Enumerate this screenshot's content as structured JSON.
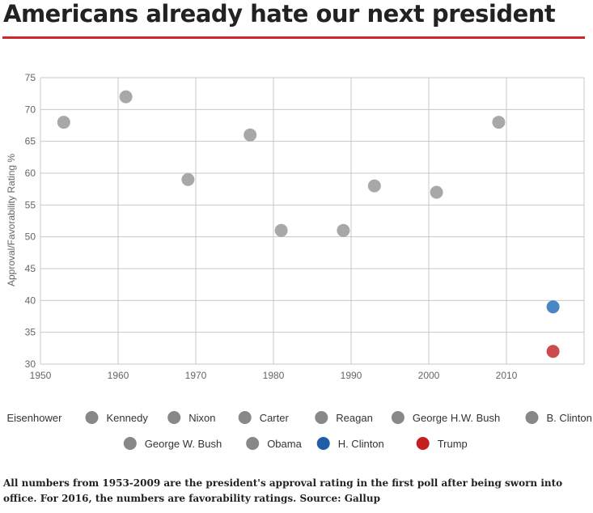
{
  "title": "Americans already hate our next president",
  "footnote": "All numbers from 1953-2009 are the president's approval rating in the first poll after being sworn into office. For 2016, the numbers are favorability ratings. Source: Gallup",
  "colors": {
    "accent_rule": "#d0262c",
    "past_point": "#a8a8a8",
    "legend_past": "#888888",
    "h_clinton": "#4a86c5",
    "h_clinton_legend": "#1f5fa8",
    "trump": "#cc4b4b",
    "trump_legend": "#c41e1e"
  },
  "chart_data": {
    "type": "scatter",
    "title": "Americans already hate our next president",
    "xlabel": "",
    "ylabel": "Approval/Favorability Rating %",
    "xlim": [
      1950,
      2020
    ],
    "ylim": [
      30,
      75
    ],
    "x_ticks": [
      1950,
      1960,
      1970,
      1980,
      1990,
      2000,
      2010
    ],
    "y_ticks": [
      30,
      35,
      40,
      45,
      50,
      55,
      60,
      65,
      70,
      75
    ],
    "grid": true,
    "legend_position": "bottom",
    "series": [
      {
        "name": "Eisenhower",
        "x": 1953,
        "y": 68,
        "color": "#a8a8a8",
        "legend_color": "#888888"
      },
      {
        "name": "Kennedy",
        "x": 1961,
        "y": 72,
        "color": "#a8a8a8",
        "legend_color": "#888888"
      },
      {
        "name": "Nixon",
        "x": 1969,
        "y": 59,
        "color": "#a8a8a8",
        "legend_color": "#888888"
      },
      {
        "name": "Carter",
        "x": 1977,
        "y": 66,
        "color": "#a8a8a8",
        "legend_color": "#888888"
      },
      {
        "name": "Reagan",
        "x": 1981,
        "y": 51,
        "color": "#a8a8a8",
        "legend_color": "#888888"
      },
      {
        "name": "George H.W. Bush",
        "x": 1989,
        "y": 51,
        "color": "#a8a8a8",
        "legend_color": "#888888"
      },
      {
        "name": "B. Clinton",
        "x": 1993,
        "y": 58,
        "color": "#a8a8a8",
        "legend_color": "#888888"
      },
      {
        "name": "George W. Bush",
        "x": 2001,
        "y": 57,
        "color": "#a8a8a8",
        "legend_color": "#888888"
      },
      {
        "name": "Obama",
        "x": 2009,
        "y": 68,
        "color": "#a8a8a8",
        "legend_color": "#888888"
      },
      {
        "name": "H. Clinton",
        "x": 2016,
        "y": 39,
        "color": "#4a86c5",
        "legend_color": "#1f5fa8"
      },
      {
        "name": "Trump",
        "x": 2016,
        "y": 32,
        "color": "#cc4b4b",
        "legend_color": "#c41e1e"
      }
    ]
  }
}
